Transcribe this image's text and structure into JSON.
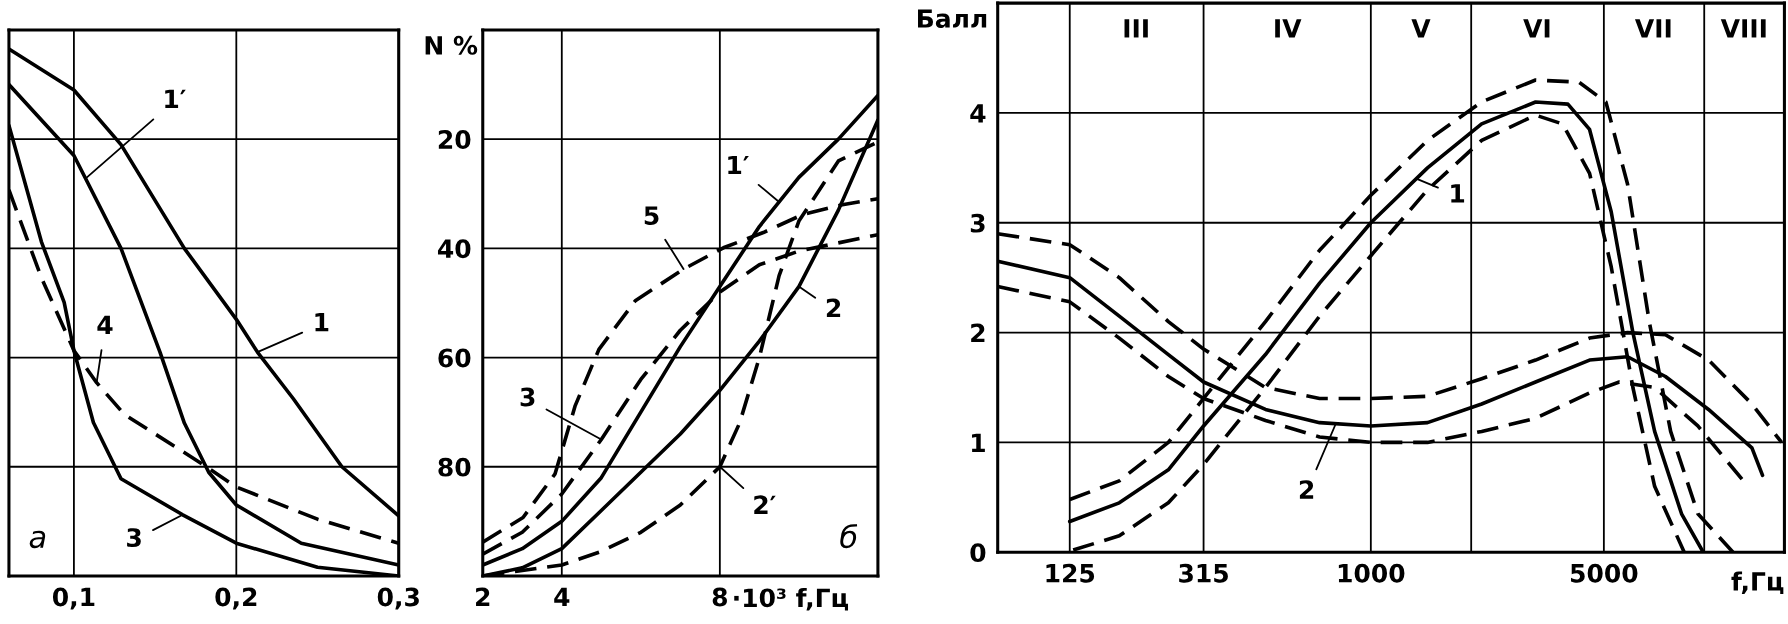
{
  "chart_data": [
    {
      "type": "line",
      "xlim": [
        0.06,
        0.3
      ],
      "xticks": [
        {
          "value": 0.1,
          "label": "0,1"
        },
        {
          "value": 0.2,
          "label": "0,2"
        },
        {
          "value": 0.3,
          "label": "0,3"
        }
      ],
      "ylim": [
        100,
        0
      ],
      "yticks": [
        20,
        40,
        60,
        80
      ],
      "tick_labels": "x",
      "grid": true,
      "series": [
        {
          "color": "#000000",
          "line_style": "solid",
          "x": [
            0.06,
            0.1,
            0.129,
            0.168,
            0.2,
            0.213,
            0.235,
            0.265,
            0.3
          ],
          "values": [
            3.5,
            11,
            21,
            40,
            53,
            59,
            67.5,
            80,
            89
          ]
        },
        {
          "color": "#000000",
          "line_style": "solid",
          "x": [
            0.06,
            0.1,
            0.129,
            0.153,
            0.168,
            0.183,
            0.2,
            0.24,
            0.3
          ],
          "values": [
            10,
            23,
            40,
            59,
            72,
            81,
            87,
            94,
            98
          ]
        },
        {
          "color": "#000000",
          "line_style": "solid",
          "x": [
            0.06,
            0.08,
            0.094,
            0.1,
            0.112,
            0.129,
            0.167,
            0.2,
            0.25,
            0.3
          ],
          "values": [
            17.5,
            38.8,
            49.9,
            58.7,
            71.9,
            82.2,
            88.8,
            94,
            98.4,
            100
          ]
        },
        {
          "color": "#000000",
          "line_style": "dashed",
          "x": [
            0.06,
            0.08,
            0.1,
            0.114,
            0.131,
            0.178,
            0.2,
            0.25,
            0.3
          ],
          "values": [
            29.3,
            45.4,
            58.7,
            64.6,
            70.4,
            79.3,
            83.7,
            89.6,
            94
          ]
        }
      ],
      "annotations": [
        {
          "text": "1′",
          "x": 0.108,
          "y": 27
        },
        {
          "text": "1",
          "x": 0.213,
          "y": 59
        },
        {
          "text": "4",
          "x": 0.114,
          "y": 64.6
        },
        {
          "text": "3",
          "x": 0.167,
          "y": 88.8
        },
        "а"
      ]
    },
    {
      "type": "line",
      "xlabel": "·10³ f,Гц",
      "ylabel": "N %",
      "xlim": [
        2,
        12
      ],
      "xticks": [
        2,
        4,
        8
      ],
      "ylim": [
        100,
        0
      ],
      "yticks": [
        20,
        40,
        60,
        80
      ],
      "grid": true,
      "series": [
        {
          "color": "#000000",
          "line_style": "dashed",
          "x": [
            2,
            3.02,
            3.83,
            4.34,
            4.94,
            5.86,
            7.08,
            8.09,
            9.1,
            10.1,
            11.1,
            12
          ],
          "values": [
            93.8,
            89.3,
            81.3,
            68.8,
            58.5,
            49.6,
            43.8,
            39.9,
            37.1,
            33.8,
            32,
            30.9
          ]
        },
        {
          "color": "#000000",
          "line_style": "dashed",
          "x": [
            2,
            3,
            4,
            5,
            6,
            7,
            8,
            9,
            10,
            11,
            12
          ],
          "values": [
            96,
            92,
            85,
            75,
            64,
            55,
            48,
            43,
            40.5,
            39,
            37.5
          ]
        },
        {
          "color": "#000000",
          "line_style": "solid",
          "x": [
            2,
            3,
            4,
            5,
            6,
            7,
            8,
            9,
            10,
            11,
            12
          ],
          "values": [
            98,
            95,
            90,
            82,
            70,
            58,
            47,
            36,
            27,
            20,
            12
          ]
        },
        {
          "color": "#000000",
          "line_style": "solid",
          "x": [
            2,
            3,
            4,
            5,
            6,
            7,
            8,
            9,
            10,
            11,
            12
          ],
          "values": [
            100,
            98.5,
            95,
            88,
            81,
            74,
            66,
            57,
            47,
            33,
            16.5
          ]
        },
        {
          "color": "#000000",
          "line_style": "dashed",
          "x": [
            2,
            3,
            4,
            5,
            6,
            7,
            8,
            8.5,
            9,
            9.5,
            10,
            11,
            12
          ],
          "values": [
            100,
            99,
            98,
            95.5,
            92,
            87,
            80,
            72,
            60,
            45,
            35,
            24,
            20.5
          ]
        }
      ],
      "annotations": [
        {
          "text": "1′",
          "x": 9.5,
          "y": 31.5
        },
        {
          "text": "5",
          "x": 7.08,
          "y": 43.8
        },
        {
          "text": "3",
          "x": 5,
          "y": 75
        },
        {
          "text": "2",
          "x": 10,
          "y": 47
        },
        {
          "text": "2′",
          "x": 8,
          "y": 80
        },
        "б"
      ]
    },
    {
      "type": "line",
      "xlabel": "f,Гц",
      "ylabel": "Балл",
      "log": "x",
      "xlim": [
        76,
        17400
      ],
      "xticks": [
        125,
        315,
        1000,
        {
          "value": 2000,
          "label": null
        },
        5000,
        {
          "value": 10000,
          "label": null
        }
      ],
      "ylim": [
        0,
        5
      ],
      "yticks": [
        0,
        1,
        2,
        3,
        4
      ],
      "grid": true,
      "series": [
        {
          "color": "#000000",
          "line_style": "solid",
          "x": [
            125,
            176,
            247,
            315,
            483,
            702,
            1000,
            1479,
            2150,
            3120,
            3900,
            4530,
            5260,
            6110,
            7100,
            8550,
            9930
          ],
          "values": [
            0.28,
            0.45,
            0.75,
            1.15,
            1.8,
            2.45,
            3.0,
            3.5,
            3.9,
            4.1,
            4.08,
            3.85,
            3.1,
            2.0,
            1.1,
            0.35,
            0
          ]
        },
        {
          "color": "#000000",
          "line_style": "dashed",
          "x": [
            125,
            176,
            247,
            315,
            483,
            702,
            1000,
            1479,
            2150,
            3120,
            4210,
            5070,
            5890,
            6840,
            7930,
            9570,
            12200
          ],
          "values": [
            0.48,
            0.65,
            1.0,
            1.4,
            2.1,
            2.75,
            3.25,
            3.75,
            4.1,
            4.3,
            4.28,
            4.1,
            3.35,
            2.1,
            1.1,
            0.35,
            0
          ]
        },
        {
          "color": "#000000",
          "line_style": "dashed",
          "x": [
            128,
            176,
            247,
            315,
            483,
            702,
            1000,
            1479,
            2150,
            3120,
            3760,
            4530,
            5260,
            6110,
            7100,
            8710
          ],
          "values": [
            0.02,
            0.15,
            0.45,
            0.8,
            1.5,
            2.15,
            2.7,
            3.3,
            3.75,
            3.98,
            3.9,
            3.45,
            2.6,
            1.5,
            0.6,
            0
          ]
        },
        {
          "color": "#000000",
          "line_style": "solid",
          "x": [
            76,
            125,
            176,
            247,
            315,
            483,
            702,
            1000,
            1479,
            2150,
            3120,
            4530,
            5890,
            7650,
            10300,
            13900,
            14960
          ],
          "values": [
            2.65,
            2.5,
            2.15,
            1.8,
            1.55,
            1.3,
            1.18,
            1.15,
            1.18,
            1.35,
            1.55,
            1.75,
            1.78,
            1.6,
            1.3,
            0.95,
            0.7
          ]
        },
        {
          "color": "#000000",
          "line_style": "dashed",
          "x": [
            76,
            125,
            176,
            247,
            315,
            483,
            702,
            1000,
            1479,
            2150,
            3120,
            4530,
            5890,
            7650,
            10300,
            13900,
            17060
          ],
          "values": [
            2.9,
            2.8,
            2.5,
            2.1,
            1.85,
            1.5,
            1.4,
            1.4,
            1.42,
            1.58,
            1.75,
            1.95,
            2.0,
            1.98,
            1.75,
            1.35,
            1.0
          ]
        },
        {
          "color": "#000000",
          "line_style": "dashed",
          "x": [
            76,
            125,
            176,
            247,
            315,
            483,
            702,
            1000,
            1479,
            2150,
            3120,
            4530,
            5560,
            7100,
            9570,
            13100
          ],
          "values": [
            2.42,
            2.28,
            1.95,
            1.6,
            1.4,
            1.2,
            1.05,
            1.0,
            1.0,
            1.1,
            1.22,
            1.45,
            1.55,
            1.5,
            1.15,
            0.65
          ]
        }
      ],
      "annotations": [
        {
          "text": "1",
          "x": 1374,
          "y": 3.4
        },
        {
          "text": "2",
          "x": 785,
          "y": 1.17
        },
        "III",
        "IV",
        "V",
        "VI",
        "VII",
        "VIII"
      ]
    }
  ]
}
